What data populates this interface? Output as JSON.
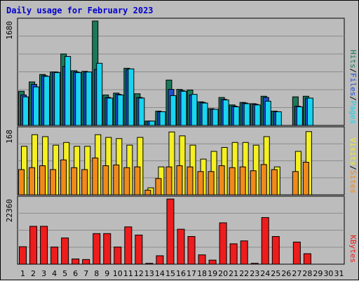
{
  "title": "Daily usage for February 2023",
  "colors": {
    "hits": "#1a7a5a",
    "files": "#1e4fd0",
    "pages": "#19d4f0",
    "visits": "#f4f022",
    "sites": "#f08a1a",
    "kbytes": "#ee1c1c",
    "weekend": "#1a7a5a",
    "weekday": "#000000",
    "frame": "#bcbcbc",
    "panel": "#bcbcbc",
    "grid": "#8c8c8c"
  },
  "chart_data": [
    {
      "type": "bar",
      "title": "Daily usage for February 2023",
      "ylabel_max": "1680",
      "ylim": [
        0,
        1680
      ],
      "categories": [
        "1",
        "2",
        "3",
        "4",
        "5",
        "6",
        "7",
        "8",
        "9",
        "10",
        "11",
        "12",
        "13",
        "14",
        "15",
        "16",
        "17",
        "18",
        "19",
        "20",
        "21",
        "22",
        "23",
        "24",
        "25",
        "26",
        "27",
        "28",
        "29",
        "30",
        "31"
      ],
      "weekend_days": [
        "4",
        "5",
        "11",
        "12",
        "18",
        "19",
        "25",
        "26"
      ],
      "grid": true,
      "legend": [
        {
          "key": "pages",
          "label": "Pages"
        },
        {
          "key": "files",
          "label": "Files"
        },
        {
          "key": "hits",
          "label": "Hits"
        }
      ],
      "series": [
        {
          "name": "Hits",
          "key": "hits",
          "values": [
            550,
            700,
            820,
            860,
            1150,
            880,
            870,
            1680,
            490,
            520,
            920,
            510,
            70,
            230,
            730,
            580,
            570,
            380,
            270,
            450,
            330,
            370,
            350,
            470,
            230,
            0,
            460,
            470,
            0,
            0,
            0
          ]
        },
        {
          "name": "Files",
          "key": "files",
          "values": [
            490,
            660,
            800,
            860,
            950,
            860,
            860,
            900,
            450,
            500,
            900,
            450,
            70,
            220,
            580,
            560,
            490,
            370,
            260,
            420,
            310,
            360,
            340,
            450,
            220,
            0,
            310,
            440,
            0,
            0,
            0
          ]
        },
        {
          "name": "Pages",
          "key": "pages",
          "values": [
            460,
            620,
            790,
            850,
            1110,
            850,
            860,
            1000,
            440,
            490,
            910,
            440,
            70,
            220,
            480,
            550,
            500,
            360,
            260,
            410,
            300,
            350,
            330,
            390,
            220,
            0,
            300,
            440,
            0,
            0,
            0
          ]
        }
      ]
    },
    {
      "type": "bar",
      "ylabel_max": "168",
      "ylim": [
        0,
        168
      ],
      "categories": [
        "1",
        "2",
        "3",
        "4",
        "5",
        "6",
        "7",
        "8",
        "9",
        "10",
        "11",
        "12",
        "13",
        "14",
        "15",
        "16",
        "17",
        "18",
        "19",
        "20",
        "21",
        "22",
        "23",
        "24",
        "25",
        "26",
        "27",
        "28",
        "29",
        "30",
        "31"
      ],
      "grid": true,
      "legend": [
        {
          "key": "sites",
          "label": "Sites"
        },
        {
          "key": "visits",
          "label": "Visits"
        }
      ],
      "series": [
        {
          "name": "Visits",
          "key": "visits",
          "values": [
            125,
            155,
            150,
            128,
            135,
            125,
            125,
            155,
            148,
            145,
            128,
            148,
            18,
            72,
            162,
            152,
            128,
            92,
            112,
            122,
            135,
            135,
            128,
            150,
            72,
            0,
            112,
            163,
            0,
            0,
            0
          ]
        },
        {
          "name": "Sites",
          "key": "sites",
          "values": [
            65,
            70,
            75,
            65,
            90,
            70,
            65,
            95,
            75,
            77,
            70,
            72,
            12,
            42,
            72,
            75,
            72,
            60,
            60,
            75,
            70,
            72,
            62,
            78,
            65,
            0,
            60,
            84,
            0,
            0,
            0
          ]
        }
      ]
    },
    {
      "type": "bar",
      "ylabel_max": "22360",
      "ylim": [
        0,
        22360
      ],
      "categories": [
        "1",
        "2",
        "3",
        "4",
        "5",
        "6",
        "7",
        "8",
        "9",
        "10",
        "11",
        "12",
        "13",
        "14",
        "15",
        "16",
        "17",
        "18",
        "19",
        "20",
        "21",
        "22",
        "23",
        "24",
        "25",
        "26",
        "27",
        "28",
        "29",
        "30",
        "31"
      ],
      "grid": true,
      "legend": [
        {
          "key": "kbytes",
          "label": "KBytes"
        }
      ],
      "series": [
        {
          "name": "KBytes",
          "key": "kbytes",
          "values": [
            6000,
            13000,
            13000,
            5900,
            9000,
            1800,
            1600,
            10500,
            10500,
            5900,
            12800,
            10000,
            300,
            2900,
            22360,
            12000,
            9500,
            3200,
            1400,
            14200,
            7000,
            8000,
            300,
            16000,
            9500,
            0,
            7600,
            3600,
            0,
            0,
            0
          ]
        }
      ]
    }
  ]
}
